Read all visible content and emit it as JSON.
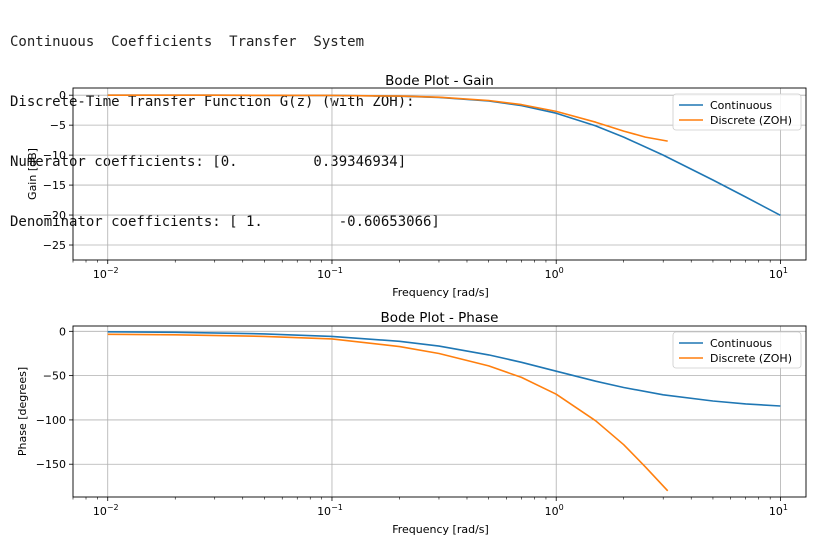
{
  "console": {
    "lines": [
      "Continuous  Coefficients  Transfer  System",
      "Discrete-Time Transfer Function G(z) (with ZOH):",
      "Numerator coefficients: [0.         0.39346934]",
      "Denominator coefficients: [ 1.         -0.60653066]"
    ]
  },
  "colors": {
    "continuous": "#1f77b4",
    "discrete": "#ff7f0e",
    "grid": "#b0b0b0"
  },
  "chart_data": [
    {
      "type": "line",
      "title": "Bode Plot - Gain",
      "xlabel": "Frequency [rad/s]",
      "ylabel": "Gain [dB]",
      "xscale": "log",
      "xlim": [
        0.007,
        13
      ],
      "ylim": [
        -27.5,
        1.2
      ],
      "xticks": [
        0.01,
        0.1,
        1,
        10
      ],
      "xtick_labels": [
        "10",
        "10",
        "10",
        "10"
      ],
      "xtick_exponents": [
        "−2",
        "−1",
        "0",
        "1"
      ],
      "yticks": [
        0,
        -5,
        -10,
        -15,
        -20,
        -25
      ],
      "ytick_labels": [
        "0",
        "−5",
        "−10",
        "−15",
        "−20",
        "−25"
      ],
      "grid": true,
      "legend": "upper right",
      "series": [
        {
          "name": "Continuous",
          "color": "#1f77b4",
          "x": [
            0.01,
            0.03,
            0.1,
            0.2,
            0.3,
            0.5,
            0.7,
            1,
            1.5,
            2,
            3,
            5,
            7,
            10
          ],
          "y": [
            0,
            -0.004,
            -0.04,
            -0.17,
            -0.37,
            -0.97,
            -1.74,
            -3.01,
            -5.12,
            -6.99,
            -10.0,
            -14.15,
            -16.99,
            -20.04
          ]
        },
        {
          "name": "Discrete (ZOH)",
          "color": "#ff7f0e",
          "x": [
            0.01,
            0.03,
            0.1,
            0.2,
            0.3,
            0.5,
            0.7,
            1,
            1.5,
            2,
            2.5,
            3.1416
          ],
          "y": [
            0,
            -0.004,
            -0.04,
            -0.15,
            -0.34,
            -0.88,
            -1.57,
            -2.7,
            -4.5,
            -6.0,
            -7.0,
            -7.66
          ]
        }
      ]
    },
    {
      "type": "line",
      "title": "Bode Plot - Phase",
      "xlabel": "Frequency [rad/s]",
      "ylabel": "Phase [degrees]",
      "xscale": "log",
      "xlim": [
        0.007,
        13
      ],
      "ylim": [
        -187,
        6
      ],
      "xticks": [
        0.01,
        0.1,
        1,
        10
      ],
      "xtick_labels": [
        "10",
        "10",
        "10",
        "10"
      ],
      "xtick_exponents": [
        "−2",
        "−1",
        "0",
        "1"
      ],
      "yticks": [
        0,
        -50,
        -100,
        -150
      ],
      "ytick_labels": [
        "0",
        "−50",
        "−100",
        "−150"
      ],
      "grid": true,
      "legend": "upper right",
      "series": [
        {
          "name": "Continuous",
          "color": "#1f77b4",
          "x": [
            0.01,
            0.02,
            0.05,
            0.1,
            0.2,
            0.3,
            0.5,
            0.7,
            1,
            1.5,
            2,
            3,
            5,
            7,
            10
          ],
          "y": [
            -0.6,
            -1.1,
            -2.9,
            -5.7,
            -11.3,
            -16.7,
            -26.6,
            -35.0,
            -45.0,
            -56.3,
            -63.4,
            -71.6,
            -78.7,
            -81.9,
            -84.3
          ]
        },
        {
          "name": "Discrete (ZOH)",
          "color": "#ff7f0e",
          "x": [
            0.01,
            0.02,
            0.05,
            0.1,
            0.2,
            0.3,
            0.5,
            0.7,
            1,
            1.5,
            2,
            2.5,
            3.1416
          ],
          "y": [
            -3.4,
            -3.9,
            -5.7,
            -8.6,
            -17.2,
            -25.0,
            -39.0,
            -52.0,
            -71.0,
            -101.0,
            -128.0,
            -153.0,
            -180.0
          ]
        }
      ]
    }
  ]
}
